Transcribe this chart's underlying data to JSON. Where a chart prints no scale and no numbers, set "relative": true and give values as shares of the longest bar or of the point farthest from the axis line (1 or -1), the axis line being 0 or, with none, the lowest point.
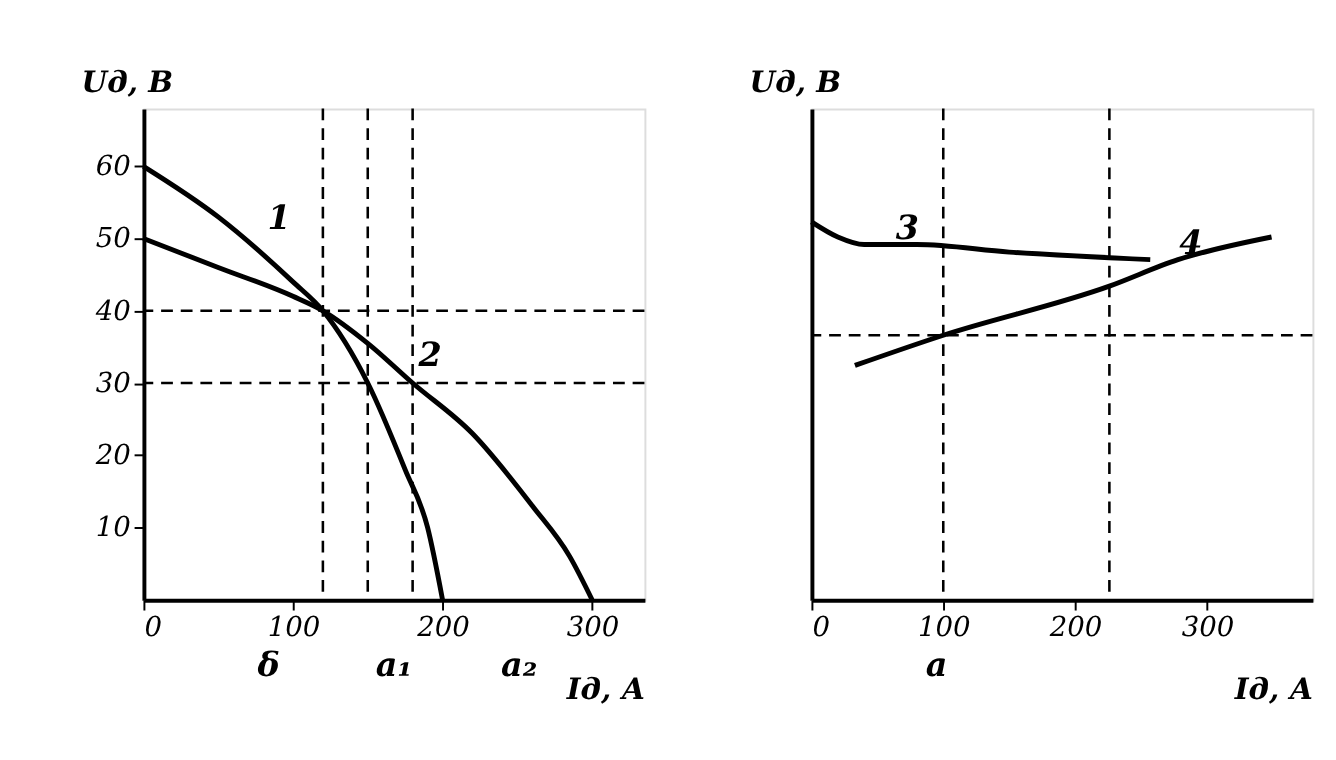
{
  "chart_data": [
    {
      "type": "line",
      "xlabel": "Iд, А",
      "ylabel": "Uд, В",
      "xlim": [
        0,
        335
      ],
      "ylim": [
        0,
        68
      ],
      "xticks": [
        0,
        100,
        200,
        300
      ],
      "yticks": [
        10,
        20,
        30,
        40,
        50,
        60
      ],
      "grid": false,
      "series": [
        {
          "color": "#000000",
          "x": [
            0,
            50,
            100,
            120,
            150,
            175,
            190,
            200
          ],
          "values": [
            60,
            53,
            44,
            40,
            30,
            18,
            10,
            0
          ]
        },
        {
          "color": "#000000",
          "x": [
            0,
            50,
            100,
            120,
            150,
            180,
            220,
            260,
            285,
            300
          ],
          "values": [
            50,
            46,
            42,
            40,
            35.5,
            30,
            23,
            13,
            6,
            0
          ]
        }
      ],
      "ref_lines": [
        {
          "axis": "y",
          "value": 40,
          "color": "#000000",
          "line_style": "dashed"
        },
        {
          "axis": "y",
          "value": 30,
          "color": "#000000",
          "line_style": "dashed"
        },
        {
          "axis": "x",
          "value": 120,
          "color": "#000000",
          "line_style": "dashed"
        },
        {
          "axis": "x",
          "value": 150,
          "color": "#000000",
          "line_style": "dashed"
        },
        {
          "axis": "x",
          "value": 180,
          "color": "#000000",
          "line_style": "dashed"
        }
      ],
      "annotations": [
        {
          "text": "1",
          "x": 75,
          "y": 50
        },
        {
          "text": "2",
          "x": 176,
          "y": 31
        },
        "δ",
        "a₁",
        "a₂"
      ]
    },
    {
      "type": "line",
      "xlabel": "Iд, А",
      "ylabel": "Uд, В",
      "relative": true,
      "xlim": [
        0,
        380
      ],
      "xticks": [
        0,
        100,
        200,
        300
      ],
      "grid": false,
      "series": [
        {
          "color": "#000000",
          "x": [
            0,
            20,
            40,
            80,
            150,
            257
          ],
          "values": [
            1,
            0.96,
            0.94,
            0.94,
            0.92,
            0.9
          ]
        },
        {
          "color": "#000000",
          "x": [
            33,
            100,
            226,
            278,
            349
          ],
          "values": [
            0.62,
            0.7,
            0.83,
            0.9,
            0.96
          ]
        }
      ],
      "ref_lines": [
        {
          "axis": "y",
          "value": 0.7,
          "color": "#000000",
          "line_style": "dashed"
        },
        {
          "axis": "x",
          "value": 100,
          "color": "#000000",
          "line_style": "dashed"
        },
        {
          "axis": "x",
          "value": 226,
          "color": "#000000",
          "line_style": "dashed"
        }
      ],
      "annotations": [
        {
          "text": "3",
          "x": 55,
          "y": 0.93
        },
        {
          "text": "4",
          "x": 270,
          "y": 0.89
        },
        "a"
      ]
    }
  ]
}
